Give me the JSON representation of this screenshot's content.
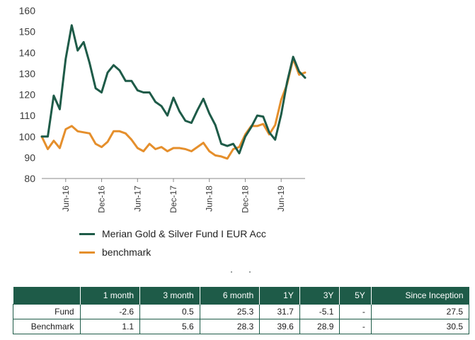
{
  "chart_data": {
    "type": "line",
    "ylim": [
      80,
      160
    ],
    "yticks": [
      80,
      90,
      100,
      110,
      120,
      130,
      140,
      150,
      160
    ],
    "x_tick_labels": [
      "Jun-16",
      "Dec-16",
      "Jun-17",
      "Dec-17",
      "Jun-18",
      "Dec-18",
      "Jun-19"
    ],
    "x_tick_positions": [
      4,
      10,
      16,
      22,
      28,
      34,
      40
    ],
    "x_range": [
      0,
      45
    ],
    "grid": false,
    "legend_placement": "bottom-left",
    "series": [
      {
        "name": "Merian Gold & Silver Fund I EUR Acc",
        "color": "#1e5b48",
        "values": [
          100,
          100,
          119.5,
          113,
          137,
          153,
          141,
          145,
          135,
          123,
          121,
          130.5,
          134,
          131.5,
          126.5,
          126.5,
          122,
          121,
          121,
          116.5,
          114.5,
          110,
          118.5,
          112,
          107.5,
          106.5,
          112.5,
          118,
          111,
          105.5,
          96.5,
          95.5,
          96.5,
          92,
          100,
          104.5,
          110,
          109.5,
          102,
          98.5,
          110.5,
          126,
          138,
          131,
          128
        ]
      },
      {
        "name": "benchmark",
        "color": "#e58f2c",
        "values": [
          100,
          94,
          98,
          94.5,
          103.5,
          105,
          102.5,
          102,
          101.5,
          96.5,
          95,
          97.5,
          102.5,
          102.5,
          101.5,
          98.5,
          94.5,
          93,
          96.5,
          94,
          95,
          93,
          94.5,
          94.5,
          94,
          93,
          95,
          97,
          93,
          91,
          90.5,
          89.5,
          94,
          95,
          101,
          105,
          105,
          106,
          101,
          105.5,
          117.5,
          125,
          137,
          129.5,
          130.5
        ]
      }
    ]
  },
  "legend": {
    "items": [
      {
        "label": "Merian Gold & Silver Fund I EUR Acc",
        "color": "#1e5b48"
      },
      {
        "label": "benchmark",
        "color": "#e58f2c"
      }
    ]
  },
  "table": {
    "headers": [
      "",
      "1 month",
      "3 month",
      "6 month",
      "1Y",
      "3Y",
      "5Y",
      "Since Inception"
    ],
    "rows": [
      {
        "label": "Fund",
        "values": [
          "-2.6",
          "0.5",
          "25.3",
          "31.7",
          "-5.1",
          "-",
          "27.5"
        ]
      },
      {
        "label": "Benchmark",
        "values": [
          "1.1",
          "5.6",
          "28.3",
          "39.6",
          "28.9",
          "-",
          "30.5"
        ]
      }
    ]
  }
}
